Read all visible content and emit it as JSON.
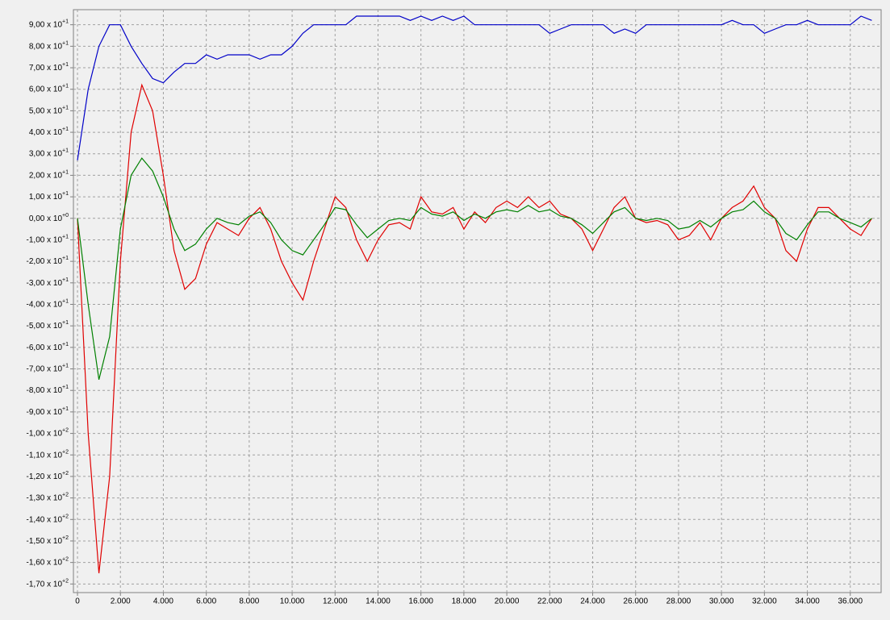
{
  "chart_data": {
    "type": "line",
    "x": [
      0,
      500,
      1000,
      1500,
      2000,
      2500,
      3000,
      3500,
      4000,
      4500,
      5000,
      5500,
      6000,
      6500,
      7000,
      7500,
      8000,
      8500,
      9000,
      9500,
      10000,
      10500,
      11000,
      11500,
      12000,
      12500,
      13000,
      13500,
      14000,
      14500,
      15000,
      15500,
      16000,
      16500,
      17000,
      17500,
      18000,
      18500,
      19000,
      19500,
      20000,
      20500,
      21000,
      21500,
      22000,
      22500,
      23000,
      23500,
      24000,
      24500,
      25000,
      25500,
      26000,
      26500,
      27000,
      27500,
      28000,
      28500,
      29000,
      29500,
      30000,
      30500,
      31000,
      31500,
      32000,
      32500,
      33000,
      33500,
      34000,
      34500,
      35000,
      35500,
      36000,
      36500,
      37000
    ],
    "series": [
      {
        "color": "#0000c8",
        "values": [
          27,
          60,
          80,
          90,
          90,
          80,
          72,
          65,
          63,
          68,
          72,
          72,
          76,
          74,
          76,
          76,
          76,
          74,
          76,
          76,
          80,
          86,
          90,
          90,
          90,
          90,
          94,
          94,
          94,
          94,
          94,
          92,
          94,
          92,
          94,
          92,
          94,
          90,
          90,
          90,
          90,
          90,
          90,
          90,
          86,
          88,
          90,
          90,
          90,
          90,
          86,
          88,
          86,
          90,
          90,
          90,
          90,
          90,
          90,
          90,
          90,
          92,
          90,
          90,
          86,
          88,
          90,
          90,
          92,
          90,
          90,
          90,
          90,
          94,
          92
        ]
      },
      {
        "color": "#e00000",
        "values": [
          0,
          -100,
          -165,
          -120,
          -20,
          40,
          62,
          50,
          20,
          -15,
          -33,
          -28,
          -12,
          -2,
          -5,
          -8,
          0,
          5,
          -5,
          -20,
          -30,
          -38,
          -20,
          -5,
          10,
          5,
          -10,
          -20,
          -10,
          -3,
          -2,
          -5,
          10,
          3,
          2,
          5,
          -5,
          3,
          -2,
          5,
          8,
          5,
          10,
          5,
          8,
          2,
          0,
          -5,
          -15,
          -5,
          5,
          10,
          0,
          -2,
          -1,
          -3,
          -10,
          -8,
          -2,
          -10,
          0,
          5,
          8,
          15,
          5,
          0,
          -15,
          -20,
          -5,
          5,
          5,
          0,
          -5,
          -8,
          0
        ]
      },
      {
        "color": "#008000",
        "values": [
          0,
          -40,
          -75,
          -55,
          -5,
          20,
          28,
          22,
          10,
          -5,
          -15,
          -12,
          -5,
          0,
          -2,
          -3,
          1,
          3,
          -2,
          -10,
          -15,
          -17,
          -10,
          -3,
          5,
          4,
          -3,
          -9,
          -5,
          -1,
          0,
          -1,
          5,
          2,
          1,
          3,
          -1,
          2,
          0,
          3,
          4,
          3,
          6,
          3,
          4,
          1,
          0,
          -3,
          -7,
          -2,
          3,
          5,
          0,
          -1,
          0,
          -1,
          -5,
          -4,
          -1,
          -4,
          0,
          3,
          4,
          8,
          3,
          0,
          -7,
          -10,
          -3,
          3,
          3,
          0,
          -2,
          -4,
          0
        ]
      }
    ],
    "xlim": [
      -189,
      37437
    ],
    "xticks": [
      0,
      {
        "value": 2000,
        "label": "2.000"
      },
      {
        "value": 4000,
        "label": "4.000"
      },
      {
        "value": 6000,
        "label": "6.000"
      },
      {
        "value": 8000,
        "label": "8.000"
      },
      {
        "value": 10000,
        "label": "10.000"
      },
      {
        "value": 12000,
        "label": "12.000"
      },
      {
        "value": 14000,
        "label": "14.000"
      },
      {
        "value": 16000,
        "label": "16.000"
      },
      {
        "value": 18000,
        "label": "18.000"
      },
      {
        "value": 20000,
        "label": "20.000"
      },
      {
        "value": 22000,
        "label": "22.000"
      },
      {
        "value": 24000,
        "label": "24.000"
      },
      {
        "value": 26000,
        "label": "26.000"
      },
      {
        "value": 28000,
        "label": "28.000"
      },
      {
        "value": 30000,
        "label": "30.000"
      },
      {
        "value": 32000,
        "label": "32.000"
      },
      {
        "value": 34000,
        "label": "34.000"
      },
      {
        "value": 36000,
        "label": "36.000"
      }
    ],
    "ylim": [
      -174,
      97
    ],
    "yticks": [
      {
        "value": 90,
        "label": "9,00 x 10",
        "exponent": "+1"
      },
      {
        "value": 80,
        "label": "8,00 x 10",
        "exponent": "+1"
      },
      {
        "value": 70,
        "label": "7,00 x 10",
        "exponent": "+1"
      },
      {
        "value": 60,
        "label": "6,00 x 10",
        "exponent": "+1"
      },
      {
        "value": 50,
        "label": "5,00 x 10",
        "exponent": "+1"
      },
      {
        "value": 40,
        "label": "4,00 x 10",
        "exponent": "+1"
      },
      {
        "value": 30,
        "label": "3,00 x 10",
        "exponent": "+1"
      },
      {
        "value": 20,
        "label": "2,00 x 10",
        "exponent": "+1"
      },
      {
        "value": 10,
        "label": "1,00 x 10",
        "exponent": "+1"
      },
      {
        "value": 0,
        "label": "0,00 x 10",
        "exponent": "+0"
      },
      {
        "value": -10,
        "label": "-1,00 x 10",
        "exponent": "+1"
      },
      {
        "value": -20,
        "label": "-2,00 x 10",
        "exponent": "+1"
      },
      {
        "value": -30,
        "label": "-3,00 x 10",
        "exponent": "+1"
      },
      {
        "value": -40,
        "label": "-4,00 x 10",
        "exponent": "+1"
      },
      {
        "value": -50,
        "label": "-5,00 x 10",
        "exponent": "+1"
      },
      {
        "value": -60,
        "label": "-6,00 x 10",
        "exponent": "+1"
      },
      {
        "value": -70,
        "label": "-7,00 x 10",
        "exponent": "+1"
      },
      {
        "value": -80,
        "label": "-8,00 x 10",
        "exponent": "+1"
      },
      {
        "value": -90,
        "label": "-9,00 x 10",
        "exponent": "+1"
      },
      {
        "value": -100,
        "label": "-1,00 x 10",
        "exponent": "+2"
      },
      {
        "value": -110,
        "label": "-1,10 x 10",
        "exponent": "+2"
      },
      {
        "value": -120,
        "label": "-1,20 x 10",
        "exponent": "+2"
      },
      {
        "value": -130,
        "label": "-1,30 x 10",
        "exponent": "+2"
      },
      {
        "value": -140,
        "label": "-1,40 x 10",
        "exponent": "+2"
      },
      {
        "value": -150,
        "label": "-1,50 x 10",
        "exponent": "+2"
      },
      {
        "value": -160,
        "label": "-1,60 x 10",
        "exponent": "+2"
      },
      {
        "value": -170,
        "label": "-1,70 x 10",
        "exponent": "+2"
      }
    ],
    "grid": true
  }
}
